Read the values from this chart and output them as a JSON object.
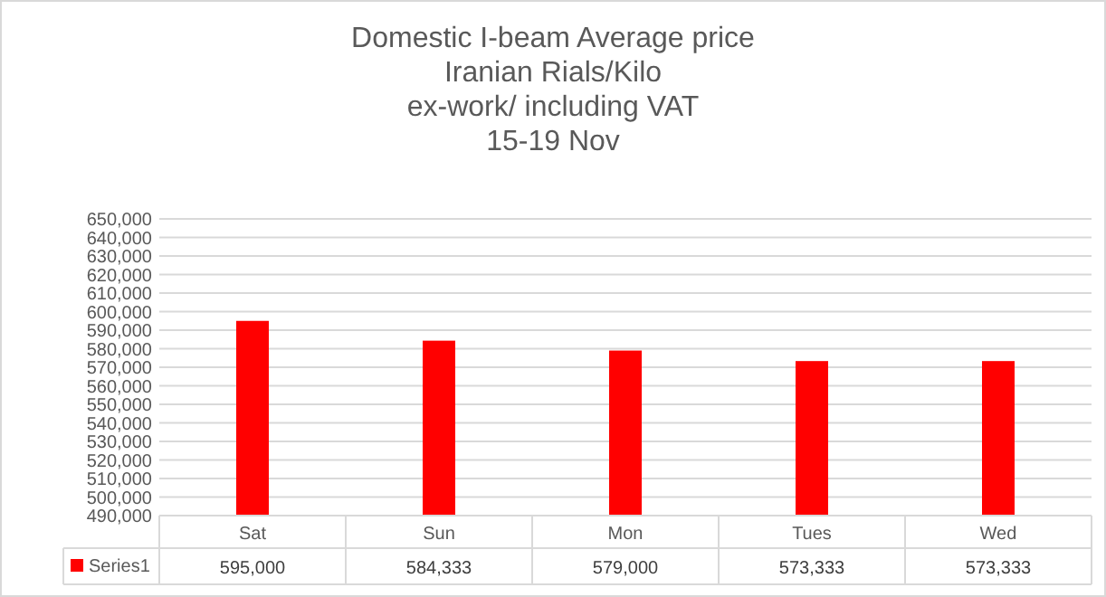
{
  "chart_data": {
    "type": "bar",
    "title": "Domestic I-beam Average price\nIranian Rials/Kilo\nex-work/ including VAT\n15-19 Nov",
    "categories": [
      "Sat",
      "Sun",
      "Mon",
      "Tues",
      "Wed"
    ],
    "series": [
      {
        "name": "Series1",
        "color": "#ff0000",
        "values": [
          595000,
          584333,
          579000,
          573333,
          573333
        ],
        "value_labels": [
          "595,000",
          "584,333",
          "579,000",
          "573,333",
          "573,333"
        ]
      }
    ],
    "ylim": [
      490000,
      650000
    ],
    "yticks": [
      {
        "value": 490000,
        "label": "490,000"
      },
      {
        "value": 500000,
        "label": "500,000"
      },
      {
        "value": 510000,
        "label": "510,000"
      },
      {
        "value": 520000,
        "label": "520,000"
      },
      {
        "value": 530000,
        "label": "530,000"
      },
      {
        "value": 540000,
        "label": "540,000"
      },
      {
        "value": 550000,
        "label": "550,000"
      },
      {
        "value": 560000,
        "label": "560,000"
      },
      {
        "value": 570000,
        "label": "570,000"
      },
      {
        "value": 580000,
        "label": "580,000"
      },
      {
        "value": 590000,
        "label": "590,000"
      },
      {
        "value": 600000,
        "label": "600,000"
      },
      {
        "value": 610000,
        "label": "610,000"
      },
      {
        "value": 620000,
        "label": "620,000"
      },
      {
        "value": 630000,
        "label": "630,000"
      },
      {
        "value": 640000,
        "label": "640,000"
      },
      {
        "value": 650000,
        "label": "650,000"
      }
    ],
    "grid": true,
    "legend": "bottom"
  }
}
